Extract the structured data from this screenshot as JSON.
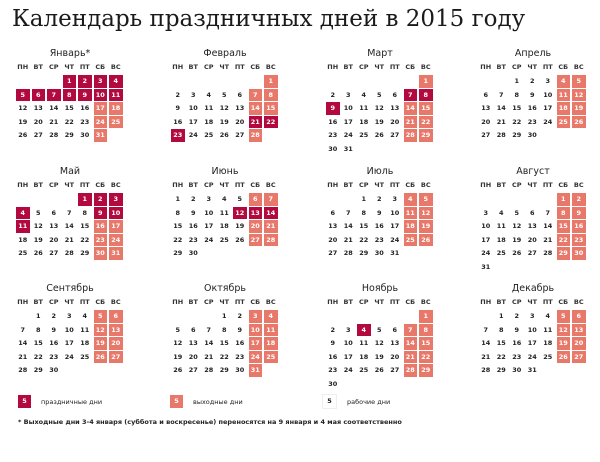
{
  "title": "Календарь праздничных дней в 2015 году",
  "weekdays": [
    "ПН",
    "ВТ",
    "СР",
    "ЧТ",
    "ПТ",
    "СБ",
    "ВС"
  ],
  "colors": {
    "holiday": "#b20a3e",
    "weekend": "#e8786a",
    "workday": "#ffffff"
  },
  "months": [
    {
      "name": "Январь*",
      "start": 3,
      "days": 31,
      "holidays": [
        1,
        2,
        3,
        4,
        5,
        6,
        7,
        8,
        9,
        10,
        11
      ]
    },
    {
      "name": "Февраль",
      "start": 6,
      "days": 28,
      "holidays": [
        21,
        22,
        23
      ]
    },
    {
      "name": "Март",
      "start": 6,
      "days": 31,
      "holidays": [
        7,
        8,
        9
      ]
    },
    {
      "name": "Апрель",
      "start": 2,
      "days": 30,
      "holidays": []
    },
    {
      "name": "Май",
      "start": 4,
      "days": 31,
      "holidays": [
        1,
        2,
        3,
        4,
        9,
        10,
        11
      ]
    },
    {
      "name": "Июнь",
      "start": 0,
      "days": 30,
      "holidays": [
        12,
        13,
        14
      ]
    },
    {
      "name": "Июль",
      "start": 2,
      "days": 31,
      "holidays": []
    },
    {
      "name": "Август",
      "start": 5,
      "days": 31,
      "holidays": []
    },
    {
      "name": "Сентябрь",
      "start": 1,
      "days": 30,
      "holidays": []
    },
    {
      "name": "Октябрь",
      "start": 3,
      "days": 31,
      "holidays": []
    },
    {
      "name": "Ноябрь",
      "start": 6,
      "days": 30,
      "holidays": [
        4
      ]
    },
    {
      "name": "Декабрь",
      "start": 1,
      "days": 31,
      "holidays": []
    }
  ],
  "legend": {
    "sample": "5",
    "holiday": "праздничные дни",
    "weekend": "выходные дни",
    "workday": "рабочие дни"
  },
  "footnote": "* Выходные дни 3-4 января (суббота и воскресенье) переносятся на 9 января и 4 мая соответственно"
}
